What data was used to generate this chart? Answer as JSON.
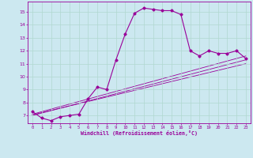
{
  "xlabel": "Windchill (Refroidissement éolien,°C)",
  "bg_color": "#cce8f0",
  "grid_color": "#b0d8d0",
  "line_color": "#990099",
  "xlim": [
    -0.5,
    23.5
  ],
  "ylim": [
    6.4,
    15.8
  ],
  "xticks": [
    0,
    1,
    2,
    3,
    4,
    5,
    6,
    7,
    8,
    9,
    10,
    11,
    12,
    13,
    14,
    15,
    16,
    17,
    18,
    19,
    20,
    21,
    22,
    23
  ],
  "yticks": [
    7,
    8,
    9,
    10,
    11,
    12,
    13,
    14,
    15
  ],
  "series": [
    [
      0,
      7.3
    ],
    [
      1,
      6.8
    ],
    [
      2,
      6.6
    ],
    [
      3,
      6.9
    ],
    [
      4,
      7.0
    ],
    [
      5,
      7.1
    ],
    [
      6,
      8.3
    ],
    [
      7,
      9.2
    ],
    [
      8,
      9.0
    ],
    [
      9,
      11.3
    ],
    [
      10,
      13.3
    ],
    [
      11,
      14.9
    ],
    [
      12,
      15.3
    ],
    [
      13,
      15.2
    ],
    [
      14,
      15.1
    ],
    [
      15,
      15.1
    ],
    [
      16,
      14.8
    ],
    [
      17,
      12.0
    ],
    [
      18,
      11.6
    ],
    [
      19,
      12.0
    ],
    [
      20,
      11.8
    ],
    [
      21,
      11.8
    ],
    [
      22,
      12.0
    ],
    [
      23,
      11.4
    ]
  ],
  "diagonal_lines": [
    [
      [
        0,
        7.0
      ],
      [
        23,
        11.3
      ]
    ],
    [
      [
        0,
        7.05
      ],
      [
        23,
        11.0
      ]
    ],
    [
      [
        0,
        7.1
      ],
      [
        23,
        11.6
      ]
    ]
  ]
}
